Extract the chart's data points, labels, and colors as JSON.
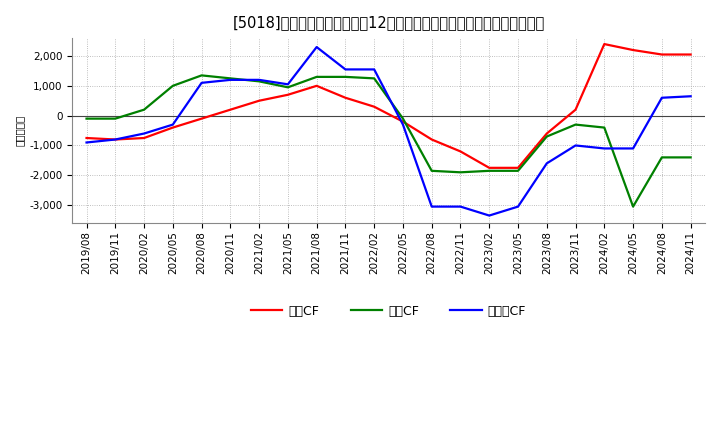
{
  "title": "[5018]　キャッシュフローの12か月移動合計の対前年同期増減額の推移",
  "ylabel": "（百万円）",
  "x_labels": [
    "2019/08",
    "2019/11",
    "2020/02",
    "2020/05",
    "2020/08",
    "2020/11",
    "2021/02",
    "2021/05",
    "2021/08",
    "2021/11",
    "2022/02",
    "2022/05",
    "2022/08",
    "2022/11",
    "2023/02",
    "2023/05",
    "2023/08",
    "2023/11",
    "2024/02",
    "2024/05",
    "2024/08",
    "2024/11"
  ],
  "営業CF": [
    -750,
    -800,
    -750,
    -400,
    -100,
    200,
    500,
    700,
    1000,
    600,
    300,
    -200,
    -800,
    -1200,
    -1750,
    -1750,
    -600,
    200,
    2400,
    2200,
    2050,
    2050
  ],
  "投資CF": [
    -100,
    -100,
    200,
    1000,
    1350,
    1250,
    1150,
    950,
    1300,
    1300,
    1250,
    -100,
    -1850,
    -1900,
    -1850,
    -1850,
    -700,
    -300,
    -400,
    -3050,
    -1400,
    -1400
  ],
  "フリーCF": [
    -900,
    -800,
    -600,
    -300,
    1100,
    1200,
    1200,
    1050,
    2300,
    1550,
    1550,
    -300,
    -3050,
    -3050,
    -3350,
    -3050,
    -1600,
    -1000,
    -1100,
    -1100,
    600,
    650
  ],
  "line_colors": {
    "営業CF": "#ff0000",
    "投資CF": "#008000",
    "フリーCF": "#0000ff"
  },
  "ylim": [
    -3600,
    2600
  ],
  "yticks": [
    -3000,
    -2000,
    -1000,
    0,
    1000,
    2000
  ],
  "bg_color": "#ffffff",
  "grid_color": "#aaaaaa",
  "title_fontsize": 10.5,
  "legend_fontsize": 9,
  "axis_fontsize": 7.5
}
